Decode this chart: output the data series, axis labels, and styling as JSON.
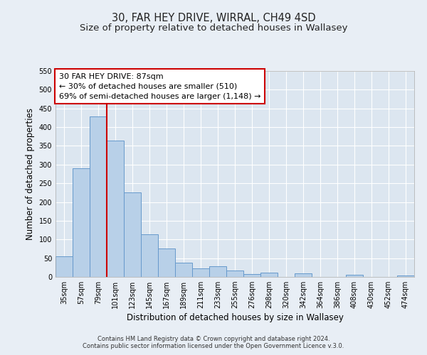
{
  "title": "30, FAR HEY DRIVE, WIRRAL, CH49 4SD",
  "subtitle": "Size of property relative to detached houses in Wallasey",
  "xlabel": "Distribution of detached houses by size in Wallasey",
  "ylabel": "Number of detached properties",
  "bin_labels": [
    "35sqm",
    "57sqm",
    "79sqm",
    "101sqm",
    "123sqm",
    "145sqm",
    "167sqm",
    "189sqm",
    "211sqm",
    "233sqm",
    "255sqm",
    "276sqm",
    "298sqm",
    "320sqm",
    "342sqm",
    "364sqm",
    "386sqm",
    "408sqm",
    "430sqm",
    "452sqm",
    "474sqm"
  ],
  "bin_values": [
    55,
    290,
    428,
    365,
    225,
    113,
    76,
    38,
    22,
    29,
    18,
    7,
    11,
    0,
    10,
    0,
    0,
    5,
    0,
    0,
    4
  ],
  "bar_color": "#b8d0e8",
  "bar_edge_color": "#6699cc",
  "vline_color": "#cc0000",
  "annotation_title": "30 FAR HEY DRIVE: 87sqm",
  "annotation_line1": "← 30% of detached houses are smaller (510)",
  "annotation_line2": "69% of semi-detached houses are larger (1,148) →",
  "annotation_box_color": "#ffffff",
  "annotation_box_edge": "#cc0000",
  "ylim": [
    0,
    550
  ],
  "yticks": [
    0,
    50,
    100,
    150,
    200,
    250,
    300,
    350,
    400,
    450,
    500,
    550
  ],
  "footer1": "Contains HM Land Registry data © Crown copyright and database right 2024.",
  "footer2": "Contains public sector information licensed under the Open Government Licence v.3.0.",
  "background_color": "#e8eef5",
  "plot_bg_color": "#dce6f0",
  "grid_color": "#ffffff",
  "title_fontsize": 10.5,
  "subtitle_fontsize": 9.5,
  "axis_label_fontsize": 8.5,
  "tick_fontsize": 7,
  "footer_fontsize": 6,
  "annotation_fontsize": 8
}
